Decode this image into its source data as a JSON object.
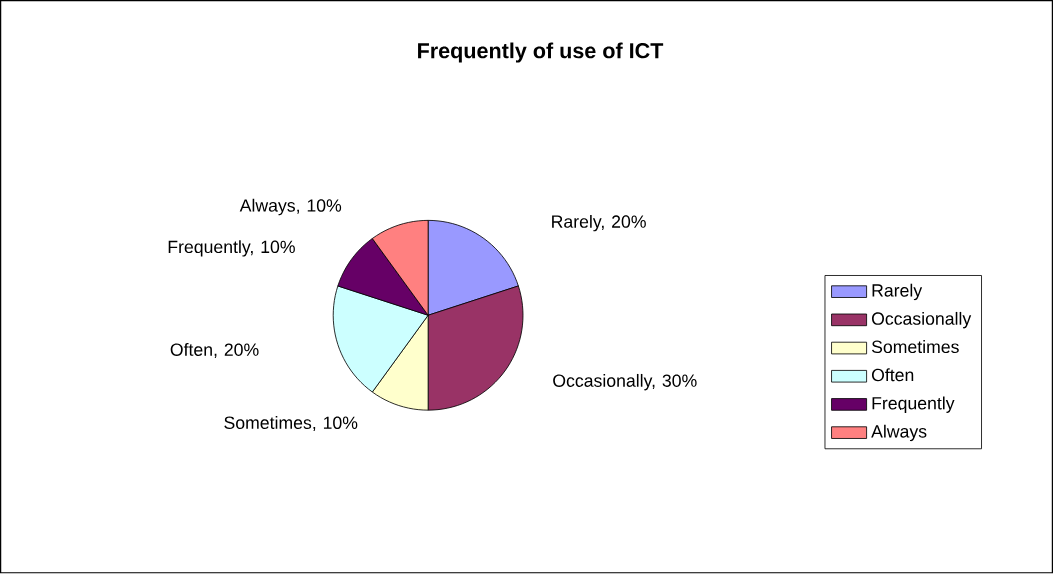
{
  "chart_data": {
    "type": "pie",
    "title": "Frequently of use of ICT",
    "categories": [
      "Rarely",
      "Occasionally",
      "Sometimes",
      "Often",
      "Frequently",
      "Always"
    ],
    "values": [
      20,
      30,
      10,
      20,
      10,
      10
    ],
    "value_labels": [
      "Rarely, 20%",
      "Occasionally, 30%",
      "Sometimes, 10%",
      "Often, 20%",
      "Frequently, 10%",
      "Always, 10%"
    ],
    "colors": [
      "#9999ff",
      "#993366",
      "#ffffcc",
      "#ccffff",
      "#660066",
      "#ff8080"
    ],
    "legend": "right"
  }
}
